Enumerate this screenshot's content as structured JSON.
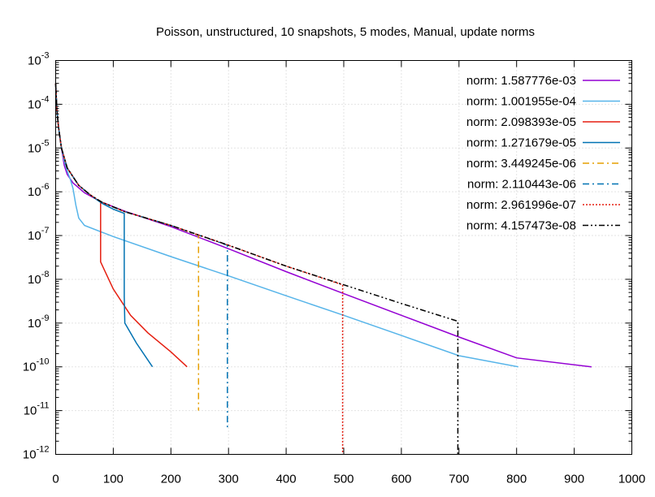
{
  "chart_data": {
    "type": "line",
    "title": "Poisson, unstructured, 10 snapshots, 5 modes, Manual, update norms",
    "xlabel": "",
    "ylabel": "",
    "xlim": [
      0,
      1000
    ],
    "ylim": [
      1e-12,
      0.001
    ],
    "yscale": "log",
    "grid": true,
    "legend_position": "top-right",
    "x_ticks": [
      "0",
      "100",
      "200",
      "300",
      "400",
      "500",
      "600",
      "700",
      "800",
      "900",
      "1000"
    ],
    "y_ticks": [
      {
        "base": "10",
        "exp": "-12"
      },
      {
        "base": "10",
        "exp": "-11"
      },
      {
        "base": "10",
        "exp": "-10"
      },
      {
        "base": "10",
        "exp": "-9"
      },
      {
        "base": "10",
        "exp": "-8"
      },
      {
        "base": "10",
        "exp": "-7"
      },
      {
        "base": "10",
        "exp": "-6"
      },
      {
        "base": "10",
        "exp": "-5"
      },
      {
        "base": "10",
        "exp": "-4"
      },
      {
        "base": "10",
        "exp": "-3"
      }
    ],
    "series": [
      {
        "name": "norm: 1.587776e-03",
        "color": "#9400d3",
        "dash": "solid",
        "points": [
          [
            0,
            0.0003
          ],
          [
            2,
            8e-05
          ],
          [
            5,
            3e-05
          ],
          [
            10,
            1e-05
          ],
          [
            15,
            4e-06
          ],
          [
            20,
            2.5e-06
          ],
          [
            30,
            1.6e-06
          ],
          [
            50,
            9.5e-07
          ],
          [
            80,
            5.8e-07
          ],
          [
            120,
            3.6e-07
          ],
          [
            200,
            1.6e-07
          ],
          [
            300,
            5e-08
          ],
          [
            400,
            1.5e-08
          ],
          [
            500,
            4.7e-09
          ],
          [
            600,
            1.5e-09
          ],
          [
            700,
            4.8e-10
          ],
          [
            800,
            1.6e-10
          ],
          [
            930,
            1e-10
          ]
        ]
      },
      {
        "name": "norm: 1.001955e-04",
        "color": "#56b4e9",
        "dash": "solid",
        "points": [
          [
            0,
            0.0003
          ],
          [
            2,
            8e-05
          ],
          [
            5,
            3e-05
          ],
          [
            10,
            1e-05
          ],
          [
            15,
            5e-06
          ],
          [
            20,
            3e-06
          ],
          [
            25,
            2e-06
          ],
          [
            30,
            1.2e-06
          ],
          [
            35,
            5e-07
          ],
          [
            40,
            2.5e-07
          ],
          [
            50,
            1.7e-07
          ],
          [
            100,
            9.5e-08
          ],
          [
            200,
            3.3e-08
          ],
          [
            300,
            1.2e-08
          ],
          [
            400,
            4.2e-09
          ],
          [
            500,
            1.5e-09
          ],
          [
            600,
            5.2e-10
          ],
          [
            700,
            1.8e-10
          ],
          [
            803,
            1e-10
          ]
        ]
      },
      {
        "name": "norm: 2.098393e-05",
        "color": "#e51e10",
        "dash": "solid",
        "points": [
          [
            0,
            0.0003
          ],
          [
            2,
            8e-05
          ],
          [
            5,
            3e-05
          ],
          [
            10,
            1e-05
          ],
          [
            20,
            3.5e-06
          ],
          [
            40,
            1.4e-06
          ],
          [
            60,
            8.5e-07
          ],
          [
            78,
            5.8e-07
          ],
          [
            78,
            2.5e-08
          ],
          [
            100,
            6e-09
          ],
          [
            130,
            1.5e-09
          ],
          [
            160,
            6e-10
          ],
          [
            200,
            2.2e-10
          ],
          [
            228,
            1e-10
          ]
        ]
      },
      {
        "name": "norm: 1.271679e-05",
        "color": "#0072b2",
        "dash": "solid",
        "points": [
          [
            0,
            0.0003
          ],
          [
            2,
            8e-05
          ],
          [
            5,
            3e-05
          ],
          [
            10,
            1e-05
          ],
          [
            20,
            3.5e-06
          ],
          [
            40,
            1.4e-06
          ],
          [
            60,
            8.5e-07
          ],
          [
            80,
            5.5e-07
          ],
          [
            100,
            4e-07
          ],
          [
            119,
            3.2e-07
          ],
          [
            119,
            4e-09
          ],
          [
            120,
            1e-09
          ],
          [
            140,
            3.5e-10
          ],
          [
            168,
            1e-10
          ]
        ]
      },
      {
        "name": "norm: 3.449245e-06",
        "color": "#e69f00",
        "dash": "dashdot",
        "points": [
          [
            0,
            0.0003
          ],
          [
            2,
            8e-05
          ],
          [
            5,
            3e-05
          ],
          [
            10,
            1e-05
          ],
          [
            20,
            3.5e-06
          ],
          [
            40,
            1.4e-06
          ],
          [
            60,
            8.5e-07
          ],
          [
            80,
            5.8e-07
          ],
          [
            120,
            3.5e-07
          ],
          [
            200,
            1.7e-07
          ],
          [
            248,
            1e-07
          ],
          [
            248,
            1e-11
          ]
        ]
      },
      {
        "name": "norm: 2.110443e-06",
        "color": "#0072b2",
        "dash": "dashdot",
        "points": [
          [
            0,
            0.0003
          ],
          [
            2,
            8e-05
          ],
          [
            5,
            3e-05
          ],
          [
            10,
            1e-05
          ],
          [
            20,
            3.5e-06
          ],
          [
            40,
            1.4e-06
          ],
          [
            60,
            8.5e-07
          ],
          [
            80,
            5.8e-07
          ],
          [
            120,
            3.5e-07
          ],
          [
            200,
            1.7e-07
          ],
          [
            298,
            6e-08
          ],
          [
            298,
            4e-12
          ]
        ]
      },
      {
        "name": "norm: 2.961996e-07",
        "color": "#e51e10",
        "dash": "dotted",
        "points": [
          [
            0,
            0.0003
          ],
          [
            2,
            8e-05
          ],
          [
            5,
            3e-05
          ],
          [
            10,
            1e-05
          ],
          [
            20,
            3.5e-06
          ],
          [
            40,
            1.4e-06
          ],
          [
            60,
            8.5e-07
          ],
          [
            80,
            5.8e-07
          ],
          [
            120,
            3.5e-07
          ],
          [
            200,
            1.7e-07
          ],
          [
            300,
            6e-08
          ],
          [
            400,
            2e-08
          ],
          [
            498,
            7.5e-09
          ],
          [
            498,
            1e-12
          ]
        ]
      },
      {
        "name": "norm: 4.157473e-08",
        "color": "#000000",
        "dash": "dashdotdot",
        "points": [
          [
            0,
            0.0003
          ],
          [
            2,
            8e-05
          ],
          [
            5,
            3e-05
          ],
          [
            10,
            1e-05
          ],
          [
            20,
            3.5e-06
          ],
          [
            40,
            1.4e-06
          ],
          [
            60,
            8.5e-07
          ],
          [
            80,
            5.8e-07
          ],
          [
            120,
            3.5e-07
          ],
          [
            200,
            1.7e-07
          ],
          [
            300,
            6e-08
          ],
          [
            400,
            2e-08
          ],
          [
            500,
            7.5e-09
          ],
          [
            600,
            2.8e-09
          ],
          [
            698,
            1.1e-09
          ],
          [
            698,
            1e-12
          ]
        ]
      }
    ]
  }
}
